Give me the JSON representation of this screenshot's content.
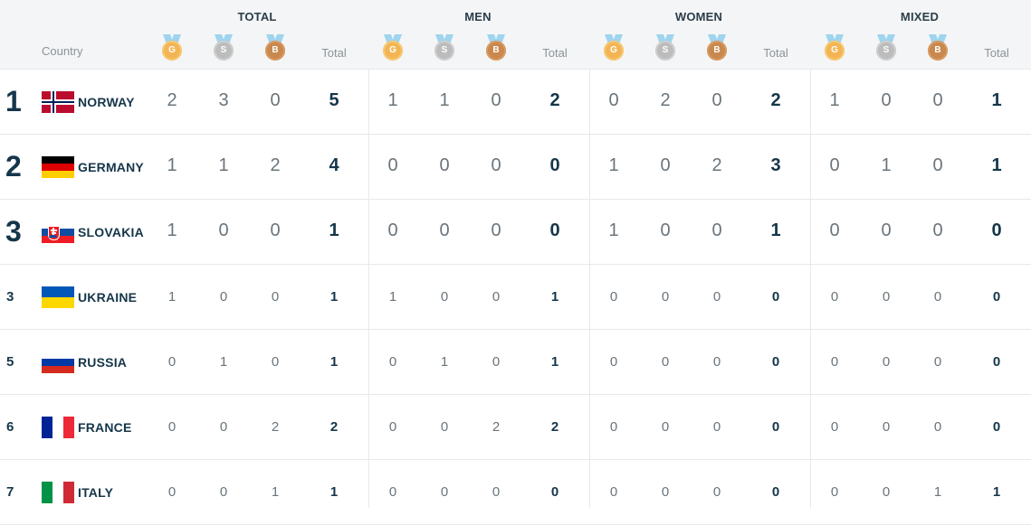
{
  "header": {
    "groups": [
      "TOTAL",
      "MEN",
      "WOMEN",
      "MIXED"
    ],
    "country_label": "Country",
    "total_label": "Total",
    "medal_letters": [
      "G",
      "S",
      "B"
    ]
  },
  "rows": [
    {
      "rank": "1",
      "country": "NORWAY",
      "flag": "norway-flag-icon",
      "values": [
        "2",
        "3",
        "0",
        "5",
        "1",
        "1",
        "0",
        "2",
        "0",
        "2",
        "0",
        "2",
        "1",
        "0",
        "0",
        "1"
      ]
    },
    {
      "rank": "2",
      "country": "GERMANY",
      "flag": "germany-flag-icon",
      "values": [
        "1",
        "1",
        "2",
        "4",
        "0",
        "0",
        "0",
        "0",
        "1",
        "0",
        "2",
        "3",
        "0",
        "1",
        "0",
        "1"
      ]
    },
    {
      "rank": "3",
      "country": "SLOVAKIA",
      "flag": "slovakia-flag-icon",
      "values": [
        "1",
        "0",
        "0",
        "1",
        "0",
        "0",
        "0",
        "0",
        "1",
        "0",
        "0",
        "1",
        "0",
        "0",
        "0",
        "0"
      ]
    },
    {
      "rank": "3",
      "country": "UKRAINE",
      "flag": "ukraine-flag-icon",
      "values": [
        "1",
        "0",
        "0",
        "1",
        "1",
        "0",
        "0",
        "1",
        "0",
        "0",
        "0",
        "0",
        "0",
        "0",
        "0",
        "0"
      ]
    },
    {
      "rank": "5",
      "country": "RUSSIA",
      "flag": "russia-flag-icon",
      "values": [
        "0",
        "1",
        "0",
        "1",
        "0",
        "1",
        "0",
        "1",
        "0",
        "0",
        "0",
        "0",
        "0",
        "0",
        "0",
        "0"
      ]
    },
    {
      "rank": "6",
      "country": "FRANCE",
      "flag": "france-flag-icon",
      "values": [
        "0",
        "0",
        "2",
        "2",
        "0",
        "0",
        "2",
        "2",
        "0",
        "0",
        "0",
        "0",
        "0",
        "0",
        "0",
        "0"
      ]
    },
    {
      "rank": "7",
      "country": "ITALY",
      "flag": "italy-flag-icon",
      "values": [
        "0",
        "0",
        "1",
        "1",
        "0",
        "0",
        "0",
        "0",
        "0",
        "0",
        "0",
        "0",
        "0",
        "0",
        "1",
        "1"
      ]
    }
  ],
  "colors": {
    "gold": "#f3b554",
    "silver": "#bcbcbc",
    "bronze": "#c9884d",
    "ribbon": "#9fd4ee",
    "header_bg": "#f4f5f6",
    "text_dark": "#15364a"
  }
}
